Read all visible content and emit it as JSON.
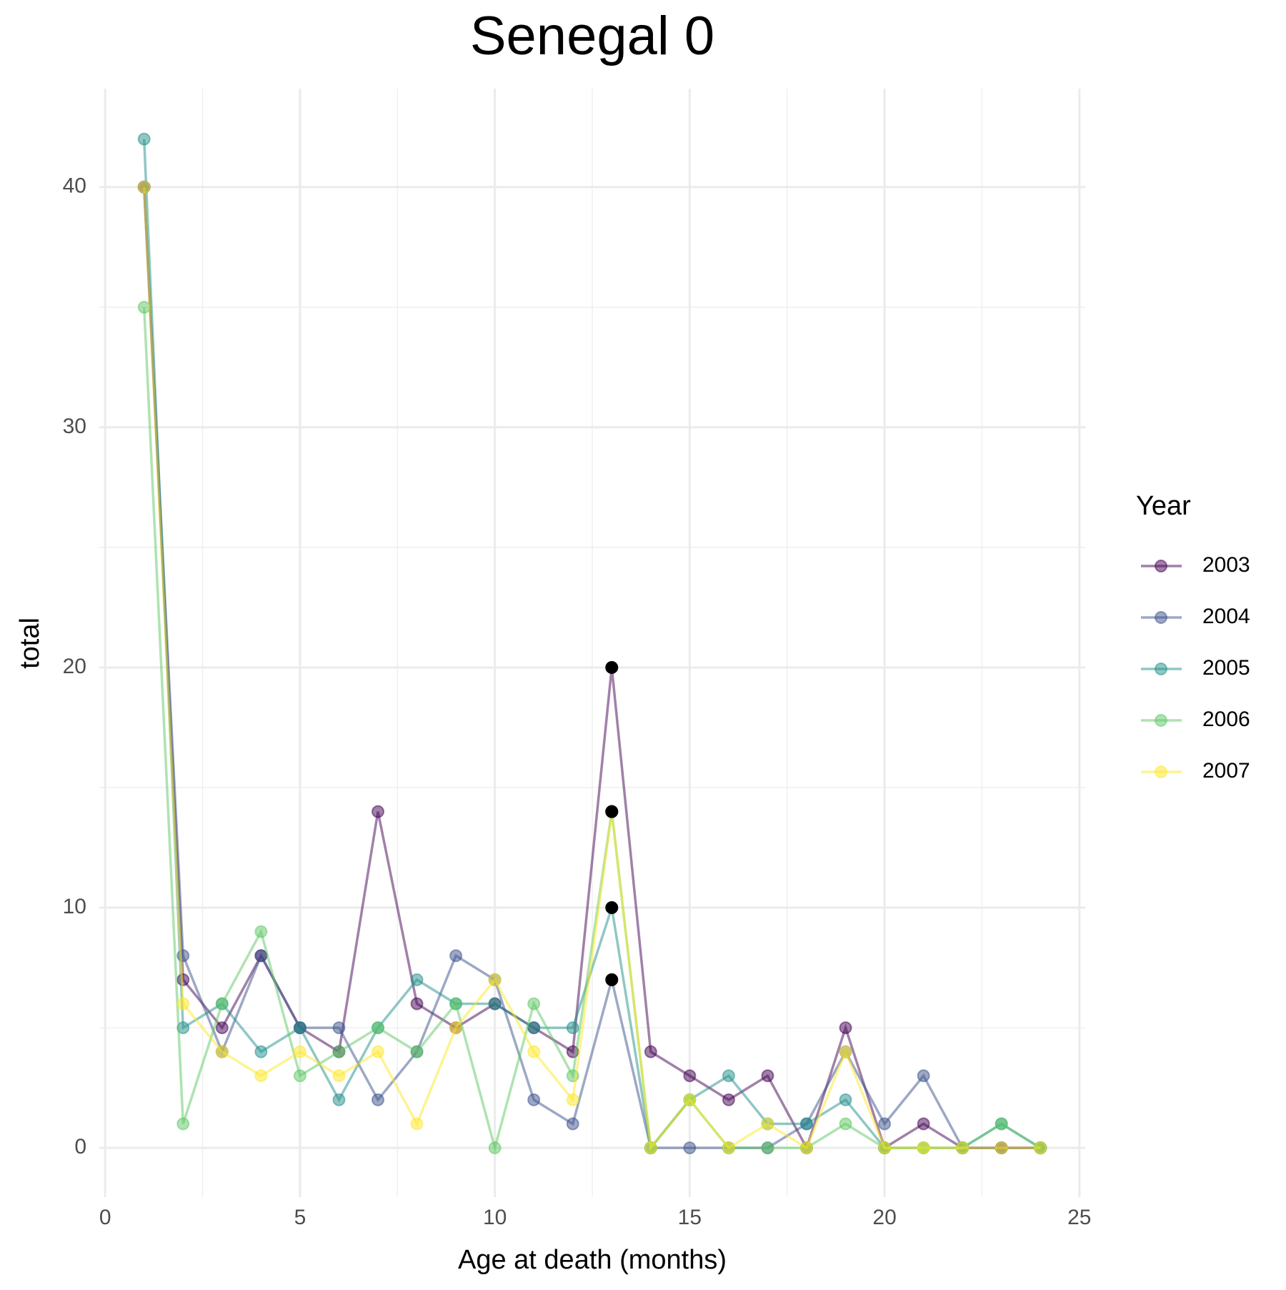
{
  "chart_data": {
    "type": "line",
    "title": "Senegal 0",
    "x_label": "Age at death (months)",
    "y_label": "total",
    "legend_title": "Year",
    "legend_position": "right",
    "x": [
      1,
      2,
      3,
      4,
      5,
      6,
      7,
      8,
      9,
      10,
      11,
      12,
      13,
      14,
      15,
      16,
      17,
      18,
      19,
      20,
      21,
      22,
      23,
      24
    ],
    "series": [
      {
        "name": "2003",
        "color": "#440154",
        "values": [
          40,
          7,
          5,
          8,
          5,
          4,
          14,
          6,
          5,
          6,
          5,
          4,
          20,
          4,
          3,
          2,
          3,
          0,
          5,
          0,
          1,
          0,
          0,
          0
        ]
      },
      {
        "name": "2004",
        "color": "#3B528B",
        "values": [
          40,
          8,
          4,
          8,
          5,
          5,
          2,
          4,
          8,
          7,
          2,
          1,
          7,
          0,
          0,
          0,
          0,
          1,
          4,
          1,
          3,
          0,
          0,
          0
        ]
      },
      {
        "name": "2005",
        "color": "#21908C",
        "values": [
          42,
          5,
          6,
          4,
          5,
          2,
          5,
          7,
          6,
          6,
          5,
          5,
          10,
          0,
          2,
          3,
          1,
          1,
          2,
          0,
          0,
          0,
          1,
          0
        ]
      },
      {
        "name": "2006",
        "color": "#5DC863",
        "values": [
          35,
          1,
          6,
          9,
          3,
          4,
          5,
          4,
          6,
          0,
          6,
          3,
          14,
          0,
          2,
          0,
          0,
          0,
          1,
          0,
          0,
          0,
          1,
          0
        ]
      },
      {
        "name": "2007",
        "color": "#FDE725",
        "values": [
          40,
          6,
          4,
          3,
          4,
          3,
          4,
          1,
          5,
          7,
          4,
          2,
          14,
          0,
          2,
          0,
          1,
          0,
          4,
          0,
          0,
          0,
          0,
          0
        ]
      }
    ],
    "opacity": 0.5,
    "highlight": {
      "x": 13,
      "color": "#000000"
    },
    "xlim": [
      -0.15,
      25.15
    ],
    "ylim": [
      -2.05,
      44.1
    ],
    "xticks": [
      0,
      5,
      10,
      15,
      20,
      25
    ],
    "yticks": [
      0,
      10,
      20,
      30,
      40
    ],
    "xminor": [
      2.5,
      7.5,
      12.5,
      17.5,
      22.5
    ],
    "yminor": [
      5,
      15,
      25,
      35
    ],
    "grid": true
  }
}
